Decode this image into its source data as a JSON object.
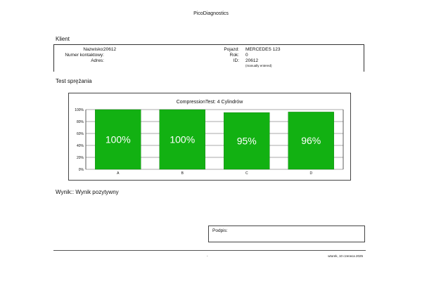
{
  "app_title": "PicoDiagnostics",
  "client_section": {
    "title": "Klient",
    "left": [
      {
        "label": "Nazwisko:",
        "value": "20612"
      },
      {
        "label": "Numer kontaktowy:",
        "value": ""
      },
      {
        "label": "Adres:",
        "value": ""
      }
    ],
    "right": [
      {
        "label": "Pojazd:",
        "value": "MERCEDES 123"
      },
      {
        "label": "Rok:",
        "value": "0"
      },
      {
        "label": "ID:",
        "value": "20612"
      }
    ],
    "id_note": "(manually entered)"
  },
  "test_section": {
    "title": "Test sprężania"
  },
  "chart_data": {
    "type": "bar",
    "title": "CompressionTest: 4 Cylindrów",
    "categories": [
      "A",
      "B",
      "C",
      "D"
    ],
    "values": [
      100,
      100,
      95,
      96
    ],
    "value_labels": [
      "100%",
      "100%",
      "95%",
      "96%"
    ],
    "y_ticks": [
      "0%",
      "20%",
      "40%",
      "60%",
      "80%",
      "100%"
    ],
    "ylim": [
      0,
      100
    ],
    "bar_color": "#12b112",
    "grid": true
  },
  "result": {
    "text": "Wynik:: Wynik pozytywny"
  },
  "signature": {
    "label": "Podpis:"
  },
  "footer": {
    "center": "-",
    "date": "wtorek, 10 czerwca 2025"
  }
}
